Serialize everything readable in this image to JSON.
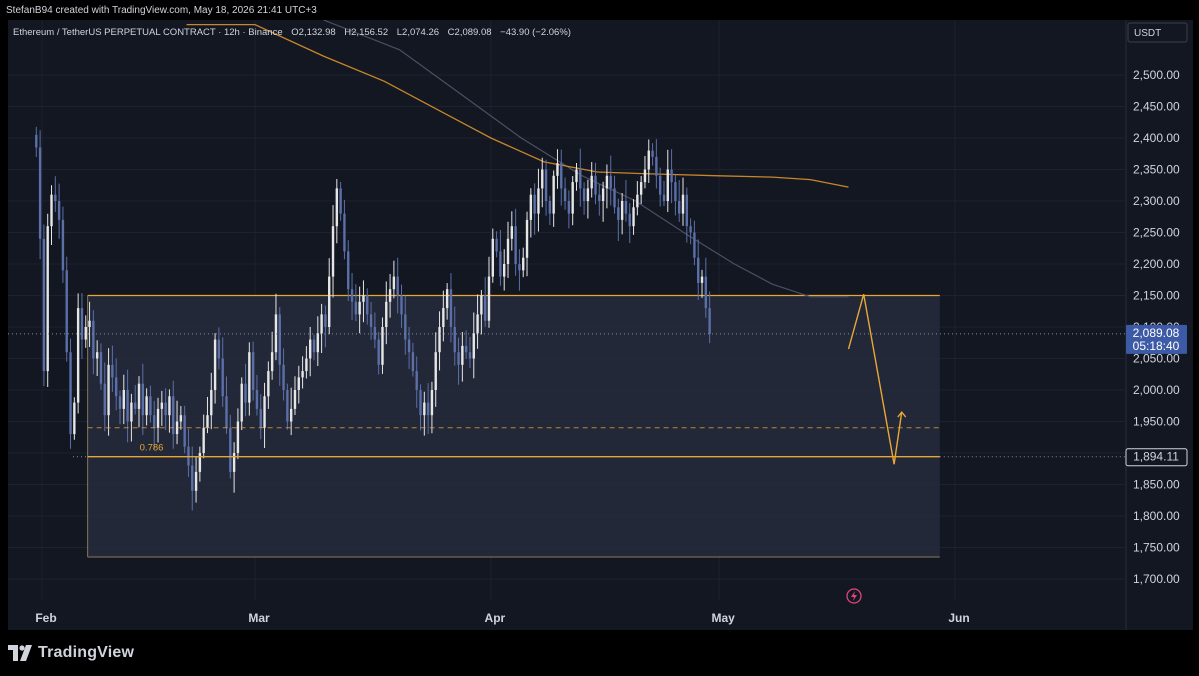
{
  "header": {
    "credit": "StefanB94 created with TradingView.com, May 18, 2026 21:41 UTC+3"
  },
  "footer": {
    "brand": "TradingView"
  },
  "colors": {
    "background": "#131722",
    "candle_up": "#e6e6e6",
    "candle_down": "#5b6fa8",
    "ma_line": "#c8862a",
    "ma_line_2": "#4a5063",
    "zone_border": "#e8a838",
    "zone_fill": "#262c3b",
    "price_label": "#3d5aa6",
    "projection": "#e8a838"
  },
  "chart_data": {
    "type": "candlestick",
    "title": "Ethereum / TetherUS PERPETUAL CONTRACT · 12h · Binance",
    "ohlc_summary": {
      "O": "O2,132.98",
      "H": "H2,156.52",
      "L": "L2,074.26",
      "C": "C2,089.08",
      "change": "−43.90 (−2.06%)"
    },
    "quote_currency": "USDT",
    "ylim": [
      1675,
      2550
    ],
    "yticks": [
      "2,500.00",
      "2,450.00",
      "2,400.00",
      "2,350.00",
      "2,300.00",
      "2,250.00",
      "2,200.00",
      "2,150.00",
      "2,100.00",
      "2,050.00",
      "2,000.00",
      "1,950.00",
      "1,900.00",
      "1,850.00",
      "1,800.00",
      "1,750.00",
      "1,700.00"
    ],
    "xticks": [
      {
        "label": "Feb",
        "date": "2026-02-01"
      },
      {
        "label": "Mar",
        "date": "2026-03-01"
      },
      {
        "label": "Apr",
        "date": "2026-04-01"
      },
      {
        "label": "May",
        "date": "2026-05-01"
      },
      {
        "label": "Jun",
        "date": "2026-06-01"
      }
    ],
    "current_price": "2,089.08",
    "countdown": "05:18:40",
    "marked_level": "1,894.11",
    "fib_label": "0.786",
    "zone": {
      "start": "2026-02-07",
      "end": "2026-05-30",
      "top": 2150,
      "bottom": 1735
    },
    "fib_level": {
      "start": "2026-02-07",
      "end": "2026-05-30",
      "value": 1894.11
    },
    "dashed_level": {
      "start": "2026-02-07",
      "end": "2026-05-30",
      "value": 1940
    },
    "projection_path": [
      {
        "date": "2026-05-18",
        "value": 2065
      },
      {
        "date": "2026-05-20",
        "value": 2152
      },
      {
        "date": "2026-05-24",
        "value": 1882
      },
      {
        "date": "2026-05-25",
        "value": 1965
      }
    ],
    "ma_slow": [
      {
        "date": "2026-02-20",
        "value": 2580
      },
      {
        "date": "2026-03-01",
        "value": 2580
      },
      {
        "date": "2026-03-10",
        "value": 2530
      },
      {
        "date": "2026-03-18",
        "value": 2490
      },
      {
        "date": "2026-03-25",
        "value": 2445
      },
      {
        "date": "2026-04-01",
        "value": 2400
      },
      {
        "date": "2026-04-08",
        "value": 2362
      },
      {
        "date": "2026-04-15",
        "value": 2346
      },
      {
        "date": "2026-04-22",
        "value": 2343
      },
      {
        "date": "2026-05-01",
        "value": 2340
      },
      {
        "date": "2026-05-08",
        "value": 2338
      },
      {
        "date": "2026-05-13",
        "value": 2334
      },
      {
        "date": "2026-05-18",
        "value": 2322
      }
    ],
    "ma_fast": [
      {
        "date": "2026-03-10",
        "value": 2590
      },
      {
        "date": "2026-03-20",
        "value": 2540
      },
      {
        "date": "2026-03-28",
        "value": 2470
      },
      {
        "date": "2026-04-05",
        "value": 2400
      },
      {
        "date": "2026-04-13",
        "value": 2340
      },
      {
        "date": "2026-04-20",
        "value": 2300
      },
      {
        "date": "2026-04-27",
        "value": 2245
      },
      {
        "date": "2026-05-03",
        "value": 2200
      },
      {
        "date": "2026-05-08",
        "value": 2168
      },
      {
        "date": "2026-05-13",
        "value": 2148
      },
      {
        "date": "2026-05-18",
        "value": 2148
      }
    ],
    "candles": {
      "interval": "12h",
      "first_date": "2026-01-31",
      "first_open": 2405,
      "closes": [
        2385,
        2240,
        2030,
        2260,
        2310,
        2300,
        2270,
        2190,
        2060,
        1930,
        1980,
        2130,
        2080,
        2100,
        2110,
        2050,
        2060,
        2010,
        1960,
        2040,
        2020,
        1990,
        1970,
        2000,
        1950,
        1980,
        1970,
        2010,
        1960,
        1990,
        1960,
        1940,
        1970,
        1980,
        1960,
        1990,
        1930,
        1950,
        1960,
        1910,
        1880,
        1840,
        1870,
        1900,
        1940,
        1960,
        2000,
        2080,
        2050,
        1990,
        1940,
        1870,
        1900,
        1950,
        2010,
        1980,
        2060,
        2000,
        1970,
        1940,
        1990,
        2030,
        2060,
        2120,
        2040,
        2000,
        1950,
        1970,
        2000,
        2020,
        2030,
        2050,
        2080,
        2060,
        2090,
        2120,
        2100,
        2180,
        2260,
        2320,
        2280,
        2220,
        2160,
        2140,
        2120,
        2140,
        2150,
        2120,
        2100,
        2080,
        2040,
        2100,
        2140,
        2160,
        2180,
        2150,
        2120,
        2080,
        2060,
        2030,
        2000,
        1960,
        1980,
        1960,
        2000,
        2060,
        2100,
        2130,
        2160,
        2100,
        2060,
        2040,
        2070,
        2060,
        2050,
        2090,
        2120,
        2150,
        2110,
        2180,
        2240,
        2220,
        2180,
        2200,
        2240,
        2260,
        2200,
        2190,
        2210,
        2270,
        2310,
        2280,
        2320,
        2350,
        2300,
        2280,
        2340,
        2360,
        2320,
        2300,
        2280,
        2330,
        2350,
        2320,
        2300,
        2320,
        2340,
        2310,
        2300,
        2320,
        2340,
        2320,
        2290,
        2270,
        2300,
        2280,
        2260,
        2290,
        2310,
        2330,
        2350,
        2380,
        2370,
        2340,
        2310,
        2300,
        2350,
        2330,
        2300,
        2280,
        2310,
        2260,
        2250,
        2210,
        2170,
        2180,
        2130,
        2089.08
      ],
      "last_high": 2156.52,
      "last_low": 2074.26
    }
  }
}
